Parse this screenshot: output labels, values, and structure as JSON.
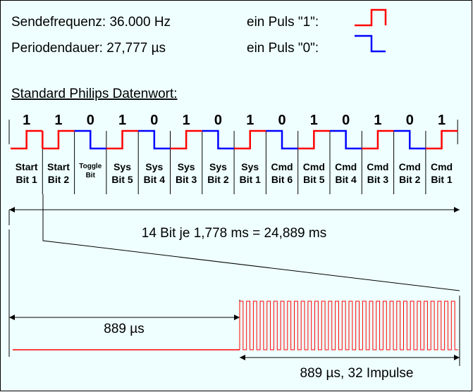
{
  "header": {
    "freq_label": "Sendefrequenz: 36.000 Hz",
    "period_label": "Periodendauer: 27,777 µs",
    "pulse_one_label": "ein Puls \"1\":",
    "pulse_zero_label": "ein Puls \"0\":"
  },
  "section_title": "Standard Philips Datenwort:",
  "bits": [
    {
      "value": "1",
      "name1": "Start",
      "name2": "Bit 1"
    },
    {
      "value": "1",
      "name1": "Start",
      "name2": "Bit 2"
    },
    {
      "value": "0",
      "name1": "Toggle",
      "name2": "Bit"
    },
    {
      "value": "1",
      "name1": "Sys",
      "name2": "Bit 5"
    },
    {
      "value": "0",
      "name1": "Sys",
      "name2": "Bit 4"
    },
    {
      "value": "1",
      "name1": "Sys",
      "name2": "Bit 3"
    },
    {
      "value": "0",
      "name1": "Sys",
      "name2": "Bit 2"
    },
    {
      "value": "1",
      "name1": "Sys",
      "name2": "Bit 1"
    },
    {
      "value": "0",
      "name1": "Cmd",
      "name2": "Bit 6"
    },
    {
      "value": "1",
      "name1": "Cmd",
      "name2": "Bit 5"
    },
    {
      "value": "0",
      "name1": "Cmd",
      "name2": "Bit 4"
    },
    {
      "value": "1",
      "name1": "Cmd",
      "name2": "Bit 3"
    },
    {
      "value": "0",
      "name1": "Cmd",
      "name2": "Bit 2"
    },
    {
      "value": "1",
      "name1": "Cmd",
      "name2": "Bit 1"
    }
  ],
  "total_label": "14 Bit je 1,778 ms = 24,889 ms",
  "pause_label": "889 µs",
  "burst_label": "889 µs, 32 Impulse",
  "burst_pulse_count": 32,
  "colors": {
    "background": "#EFFFFF",
    "one": "#FF0000",
    "zero": "#0000FF",
    "line": "#000000"
  }
}
